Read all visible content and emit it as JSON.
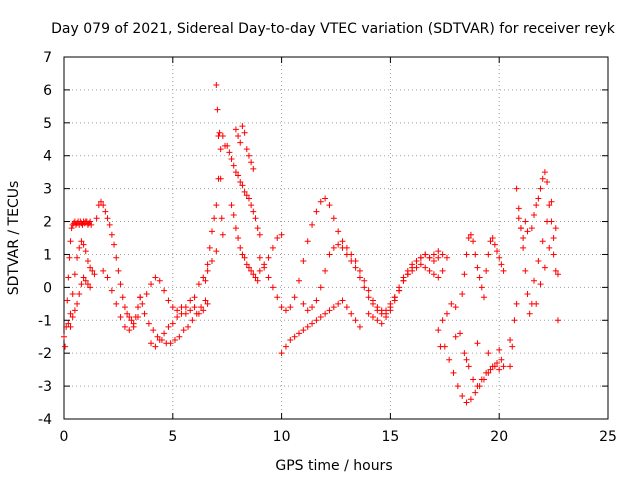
{
  "chart_data": {
    "type": "scatter",
    "title": "Day 079 of 2021, Sidereal Day-to-day VTEC variation (SDTVAR) for receiver reyk",
    "xlabel": "GPS time / hours",
    "ylabel": "SDTVAR / TECUs",
    "xlim": [
      0,
      25
    ],
    "ylim": [
      -4,
      7
    ],
    "xticks": [
      0,
      5,
      10,
      15,
      20,
      25
    ],
    "yticks": [
      -4,
      -3,
      -2,
      -1,
      0,
      1,
      2,
      3,
      4,
      5,
      6,
      7
    ],
    "grid": true,
    "marker": "+",
    "color": "#ff0000",
    "series": [
      {
        "name": "SDTVAR",
        "x": [
          0.0,
          0.05,
          0.1,
          0.15,
          0.2,
          0.25,
          0.3,
          0.35,
          0.4,
          0.45,
          0.5,
          0.55,
          0.6,
          0.65,
          0.7,
          0.75,
          0.8,
          0.85,
          0.9,
          0.95,
          1.0,
          1.05,
          1.1,
          1.15,
          1.2,
          1.25,
          0.3,
          0.4,
          0.5,
          0.6,
          0.7,
          0.8,
          0.9,
          1.0,
          1.1,
          1.2,
          1.3,
          1.4,
          0.2,
          0.3,
          0.4,
          0.5,
          0.6,
          0.7,
          0.8,
          0.9,
          1.0,
          1.1,
          1.2,
          1.5,
          1.6,
          1.7,
          1.8,
          1.9,
          2.0,
          2.1,
          2.2,
          2.3,
          2.4,
          2.5,
          2.6,
          2.7,
          2.8,
          2.9,
          3.0,
          3.1,
          3.2,
          3.3,
          3.4,
          3.5,
          1.8,
          2.0,
          2.2,
          2.4,
          2.6,
          2.8,
          3.0,
          3.2,
          3.4,
          3.6,
          3.8,
          4.0,
          4.2,
          4.4,
          4.6,
          4.8,
          5.0,
          5.2,
          5.4,
          5.6,
          5.8,
          6.0,
          6.2,
          6.4,
          6.6,
          3.5,
          3.7,
          3.9,
          4.1,
          4.3,
          4.5,
          4.7,
          4.9,
          5.1,
          5.3,
          5.5,
          5.7,
          5.9,
          6.1,
          6.3,
          6.5,
          4.0,
          4.2,
          4.4,
          4.6,
          4.8,
          5.0,
          5.2,
          5.4,
          5.6,
          5.8,
          6.0,
          6.2,
          6.4,
          6.6,
          6.8,
          7.0,
          6.5,
          6.6,
          6.7,
          6.8,
          6.9,
          7.0,
          7.1,
          7.2,
          7.3,
          7.4,
          7.0,
          7.05,
          7.1,
          7.15,
          7.2,
          7.25,
          7.3,
          7.5,
          7.6,
          7.7,
          7.8,
          7.9,
          8.0,
          8.1,
          8.2,
          8.3,
          8.4,
          8.5,
          8.6,
          8.7,
          8.8,
          8.9,
          9.0,
          7.7,
          7.8,
          7.9,
          8.0,
          8.1,
          8.2,
          8.3,
          8.4,
          8.5,
          8.6,
          8.7,
          8.8,
          8.9,
          9.0,
          9.2,
          9.4,
          9.6,
          9.8,
          10.0,
          7.9,
          8.0,
          8.1,
          8.2,
          8.3,
          8.4,
          8.5,
          8.6,
          8.7,
          9.0,
          9.2,
          9.4,
          9.6,
          9.8,
          10.0,
          10.2,
          10.4,
          10.6,
          10.8,
          11.0,
          11.2,
          11.4,
          11.6,
          11.8,
          12.0,
          12.2,
          12.4,
          12.6,
          12.8,
          13.0,
          13.2,
          13.4,
          13.6,
          13.8,
          14.0,
          14.2,
          14.4,
          14.6,
          14.8,
          15.0,
          15.2,
          15.4,
          15.6,
          15.8,
          16.0,
          16.2,
          16.4,
          16.6,
          16.8,
          17.0,
          17.2,
          10.0,
          10.2,
          10.4,
          10.6,
          10.8,
          11.0,
          11.2,
          11.4,
          11.6,
          11.8,
          12.0,
          12.2,
          12.4,
          12.6,
          12.8,
          13.0,
          13.2,
          13.4,
          13.6,
          11.0,
          11.2,
          11.4,
          11.6,
          11.8,
          12.0,
          12.2,
          12.4,
          12.6,
          12.8,
          13.0,
          13.2,
          13.4,
          13.6,
          13.8,
          14.0,
          14.2,
          14.4,
          14.6,
          14.8,
          15.0,
          15.2,
          15.4,
          15.6,
          15.8,
          16.0,
          16.2,
          16.4,
          16.6,
          16.8,
          17.0,
          17.2,
          17.4,
          14.0,
          14.2,
          14.4,
          14.6,
          14.8,
          15.0,
          15.2,
          15.4,
          15.6,
          15.8,
          16.0,
          16.2,
          16.4,
          16.6,
          16.8,
          17.0,
          17.2,
          17.4,
          17.6,
          17.2,
          17.4,
          17.6,
          17.8,
          18.0,
          18.2,
          18.4,
          18.6,
          18.8,
          19.0,
          19.2,
          19.4,
          19.6,
          19.8,
          20.0,
          20.2,
          17.5,
          17.7,
          17.9,
          18.1,
          18.3,
          18.5,
          18.7,
          18.9,
          19.1,
          19.3,
          19.5,
          19.7,
          19.9,
          20.1,
          18.3,
          18.4,
          18.5,
          18.6,
          18.7,
          18.8,
          18.9,
          19.0,
          19.1,
          19.2,
          19.3,
          19.4,
          19.5,
          19.6,
          19.7,
          19.8,
          19.9,
          20.0,
          20.1,
          20.2,
          20.5,
          20.6,
          20.7,
          20.8,
          20.9,
          21.0,
          21.1,
          21.2,
          21.3,
          20.8,
          20.9,
          21.0,
          21.1,
          21.2,
          21.3,
          21.4,
          21.5,
          21.5,
          21.6,
          21.7,
          21.8,
          21.9,
          22.0,
          22.1,
          22.2,
          22.3,
          22.4,
          22.5,
          22.6,
          22.7,
          21.6,
          21.8,
          22.0,
          22.2,
          22.4,
          22.6,
          21.7,
          21.9,
          22.1,
          22.3,
          22.5,
          22.7,
          17.3,
          18.0,
          18.5,
          19.0,
          19.5,
          20.0,
          20.5
        ],
        "y": [
          -1.5,
          -1.8,
          -1.2,
          -0.4,
          0.3,
          0.9,
          1.4,
          1.8,
          1.9,
          1.95,
          2.0,
          1.9,
          1.95,
          2.0,
          1.9,
          2.0,
          1.95,
          1.9,
          2.0,
          1.95,
          2.0,
          2.0,
          1.9,
          1.95,
          2.0,
          1.9,
          -0.8,
          -0.2,
          0.4,
          0.9,
          1.2,
          1.4,
          1.3,
          1.1,
          0.8,
          0.6,
          0.5,
          0.4,
          -1.1,
          -1.2,
          -0.9,
          -0.7,
          -0.5,
          -0.2,
          0.1,
          0.3,
          0.2,
          0.1,
          0.0,
          2.1,
          2.5,
          2.6,
          2.5,
          2.3,
          2.1,
          1.9,
          1.6,
          1.3,
          0.9,
          0.5,
          0.1,
          -0.3,
          -0.6,
          -0.8,
          -0.9,
          -1.0,
          -1.1,
          -0.9,
          -0.6,
          -0.3,
          0.5,
          0.3,
          -0.1,
          -0.5,
          -0.9,
          -1.2,
          -1.3,
          -1.2,
          -0.9,
          -0.5,
          -0.2,
          0.1,
          0.3,
          0.2,
          -0.1,
          -0.4,
          -0.6,
          -0.7,
          -0.6,
          -0.8,
          -0.7,
          -0.6,
          -0.8,
          -0.7,
          -0.5,
          -0.3,
          -0.8,
          -1.1,
          -1.3,
          -1.5,
          -1.6,
          -1.7,
          -1.7,
          -1.6,
          -1.5,
          -1.3,
          -1.2,
          -1.0,
          -0.8,
          -0.6,
          -0.4,
          -1.7,
          -1.8,
          -1.6,
          -1.4,
          -1.2,
          -1.1,
          -0.9,
          -0.8,
          -0.6,
          -0.4,
          -0.3,
          0.1,
          0.3,
          0.5,
          0.8,
          1.1,
          0.2,
          0.7,
          1.2,
          1.7,
          2.1,
          2.5,
          3.3,
          4.2,
          4.6,
          4.3,
          6.15,
          5.4,
          4.6,
          4.7,
          3.3,
          2.1,
          1.6,
          4.3,
          4.1,
          3.9,
          3.7,
          3.5,
          3.4,
          3.2,
          3.1,
          2.9,
          2.8,
          2.7,
          2.5,
          2.3,
          2.1,
          1.8,
          1.6,
          2.5,
          2.2,
          1.8,
          1.5,
          1.2,
          1.0,
          0.9,
          0.7,
          0.6,
          0.5,
          0.4,
          0.3,
          0.2,
          0.5,
          0.7,
          0.9,
          1.2,
          1.5,
          1.6,
          4.8,
          4.6,
          4.4,
          4.9,
          4.7,
          4.2,
          4.0,
          3.8,
          3.6,
          0.9,
          0.6,
          0.3,
          0.0,
          -0.3,
          -0.6,
          -0.7,
          -0.6,
          -0.3,
          0.2,
          0.8,
          1.4,
          1.9,
          2.3,
          2.6,
          2.7,
          2.5,
          2.1,
          1.7,
          1.4,
          1.2,
          1.0,
          0.8,
          0.5,
          0.2,
          -0.1,
          -0.4,
          -0.6,
          -0.7,
          -0.8,
          -0.6,
          -0.3,
          0.0,
          0.3,
          0.5,
          0.7,
          0.8,
          0.9,
          1.0,
          0.9,
          0.8,
          0.9,
          -2.0,
          -1.8,
          -1.6,
          -1.5,
          -1.4,
          -1.3,
          -1.2,
          -1.1,
          -1.0,
          -0.9,
          -0.8,
          -0.7,
          -0.6,
          -0.5,
          -0.4,
          -0.6,
          -0.8,
          -1.0,
          -1.2,
          -0.5,
          -0.7,
          -0.6,
          -0.4,
          0.0,
          0.5,
          1.0,
          1.2,
          1.3,
          1.2,
          1.0,
          0.8,
          0.6,
          0.3,
          0.0,
          -0.3,
          -0.5,
          -0.7,
          -0.8,
          -0.7,
          -0.5,
          -0.3,
          -0.1,
          0.2,
          0.4,
          0.5,
          0.6,
          0.7,
          0.6,
          0.5,
          0.4,
          0.3,
          0.5,
          -0.8,
          -0.9,
          -1.0,
          -1.1,
          -0.9,
          -0.7,
          -0.4,
          -0.1,
          0.2,
          0.4,
          0.6,
          0.8,
          0.9,
          1.0,
          0.9,
          1.0,
          1.1,
          1.0,
          0.9,
          -1.3,
          -1.0,
          -0.8,
          -0.5,
          -0.6,
          -1.4,
          -2.0,
          -2.4,
          -2.8,
          -3.0,
          -2.8,
          -2.6,
          -2.5,
          -2.4,
          -2.5,
          -2.4,
          -1.8,
          -2.2,
          -2.6,
          -3.0,
          -3.3,
          -3.5,
          -3.4,
          -3.2,
          -3.0,
          -2.8,
          -2.6,
          -2.4,
          -2.3,
          -2.2,
          -0.2,
          0.4,
          1.0,
          1.5,
          1.6,
          1.4,
          1.0,
          0.6,
          0.3,
          0.0,
          -0.3,
          0.5,
          1.0,
          1.4,
          1.5,
          1.3,
          1.1,
          0.9,
          0.7,
          0.5,
          -2.4,
          -1.8,
          -1.0,
          -0.5,
          2.1,
          1.8,
          1.5,
          2.0,
          1.7,
          3.0,
          2.4,
          1.8,
          1.2,
          0.5,
          -0.2,
          -0.8,
          -0.5,
          1.8,
          2.2,
          2.5,
          2.7,
          3.0,
          3.3,
          3.5,
          3.2,
          2.5,
          2.0,
          1.5,
          0.5,
          -1.0,
          0.2,
          0.8,
          1.4,
          2.0,
          2.6,
          1.8,
          -0.5,
          0.1,
          0.6,
          1.2,
          1.0,
          0.4,
          -1.8,
          -1.5,
          -2.2,
          -1.7,
          -2.0,
          -1.9,
          -1.6
        ]
      }
    ]
  }
}
